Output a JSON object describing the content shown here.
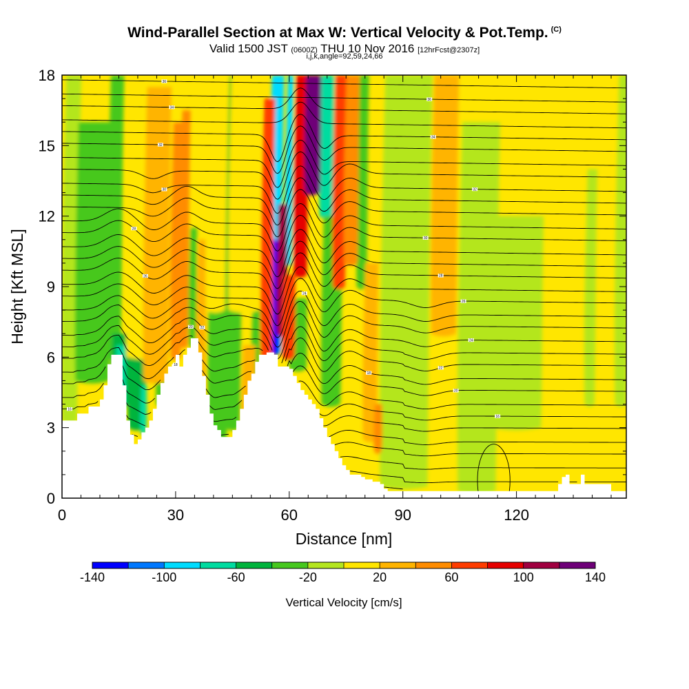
{
  "title": {
    "main": "Wind-Parallel Section at Max W: Vertical Velocity & Pot.Temp.",
    "main_units": "(C)",
    "valid_prefix": "Valid 1500 JST",
    "valid_utc": "(0600Z)",
    "valid_date": "THU 10 Nov 2016",
    "forecast": "[12hrFcst@2307z]",
    "indices": "i,j,k,angle=92,59,24,66"
  },
  "chart_data": {
    "type": "heatmap",
    "xlabel": "Distance [nm]",
    "ylabel": "Height [Kft MSL]",
    "xlim": [
      0,
      149
    ],
    "ylim": [
      0,
      18
    ],
    "x_ticks": [
      "0",
      "30",
      "60",
      "90",
      "120"
    ],
    "x_tick_values": [
      0,
      30,
      60,
      90,
      120
    ],
    "y_ticks": [
      "0",
      "3",
      "6",
      "9",
      "12",
      "15",
      "18"
    ],
    "y_tick_values": [
      0,
      3,
      6,
      9,
      12,
      15,
      18
    ],
    "colorbar": {
      "label": "Vertical Velocity [cm/s]",
      "tick_labels": [
        "-140",
        "-100",
        "-60",
        "-20",
        "20",
        "60",
        "100",
        "140"
      ],
      "tick_values": [
        -140,
        -100,
        -60,
        -20,
        20,
        60,
        100,
        140
      ],
      "bounds": [
        -140,
        -120,
        -100,
        -80,
        -60,
        -40,
        -20,
        0,
        20,
        40,
        60,
        80,
        100,
        120,
        140
      ],
      "colors": [
        "#0000ff",
        "#0078ff",
        "#00dcff",
        "#00dca0",
        "#00b43c",
        "#46c81e",
        "#b4e61e",
        "#ffe600",
        "#ffb400",
        "#ff8c00",
        "#ff3c00",
        "#e60000",
        "#a00040",
        "#6e0078"
      ]
    },
    "terrain": [
      [
        0,
        3.3
      ],
      [
        3,
        3.3
      ],
      [
        4,
        3.6
      ],
      [
        6,
        3.6
      ],
      [
        7,
        3.9
      ],
      [
        9,
        3.9
      ],
      [
        10,
        4.2
      ],
      [
        11,
        4.8
      ],
      [
        12,
        5.7
      ],
      [
        13,
        6.1
      ],
      [
        15,
        6.1
      ],
      [
        16,
        4.8
      ],
      [
        17,
        3.3
      ],
      [
        18,
        2.7
      ],
      [
        19,
        2.3
      ],
      [
        20,
        2.5
      ],
      [
        21,
        2.8
      ],
      [
        22,
        3.0
      ],
      [
        23,
        3.3
      ],
      [
        24,
        3.8
      ],
      [
        25,
        4.4
      ],
      [
        26,
        4.9
      ],
      [
        27,
        5.3
      ],
      [
        28,
        5.6
      ],
      [
        29,
        5.7
      ],
      [
        30,
        6.1
      ],
      [
        31,
        5.6
      ],
      [
        32,
        6.1
      ],
      [
        33,
        6.4
      ],
      [
        34,
        6.8
      ],
      [
        35,
        6.8
      ],
      [
        36,
        6.2
      ],
      [
        37,
        5.2
      ],
      [
        38,
        4.4
      ],
      [
        39,
        3.6
      ],
      [
        40,
        3.1
      ],
      [
        41,
        2.9
      ],
      [
        42,
        2.6
      ],
      [
        44,
        2.6
      ],
      [
        45,
        2.9
      ],
      [
        46,
        3.3
      ],
      [
        47,
        3.8
      ],
      [
        48,
        4.4
      ],
      [
        49,
        5.0
      ],
      [
        50,
        5.3
      ],
      [
        51,
        5.8
      ],
      [
        52,
        6.1
      ],
      [
        54,
        6.2
      ],
      [
        56,
        6.1
      ],
      [
        57,
        5.6
      ],
      [
        60,
        5.5
      ],
      [
        61,
        5.2
      ],
      [
        62,
        4.9
      ],
      [
        63,
        4.6
      ],
      [
        64,
        4.4
      ],
      [
        65,
        4.2
      ],
      [
        66,
        4.0
      ],
      [
        67,
        3.8
      ],
      [
        68,
        3.4
      ],
      [
        69,
        3.0
      ],
      [
        70,
        2.6
      ],
      [
        71,
        2.3
      ],
      [
        72,
        2.0
      ],
      [
        73,
        1.7
      ],
      [
        74,
        1.4
      ],
      [
        75,
        1.2
      ],
      [
        76,
        1.0
      ],
      [
        78,
        1.0
      ],
      [
        79,
        0.9
      ],
      [
        80,
        0.8
      ],
      [
        82,
        0.7
      ],
      [
        84,
        0.6
      ],
      [
        85,
        0.4
      ],
      [
        86,
        0.3
      ],
      [
        130,
        0.3
      ],
      [
        131,
        0.6
      ],
      [
        132,
        0.9
      ],
      [
        133,
        1.0
      ],
      [
        134,
        0.6
      ],
      [
        136,
        0.6
      ],
      [
        137,
        1.0
      ],
      [
        138,
        0.6
      ],
      [
        144,
        0.6
      ],
      [
        145,
        0.3
      ],
      [
        149,
        0.3
      ]
    ],
    "updraft_bands": [
      {
        "x0": 17,
        "x1": 30,
        "ybot": 6.0,
        "ytop": 18,
        "value": 8
      },
      {
        "x0": 21.5,
        "x1": 28,
        "ybot": 5.0,
        "ytop": 17.5,
        "value": 25
      },
      {
        "x0": 28.6,
        "x1": 31.3,
        "ybot": 6.0,
        "ytop": 16.0,
        "value": 40
      },
      {
        "x0": 31.0,
        "x1": 33.2,
        "ybot": 6.5,
        "ytop": 16.5,
        "value": 50
      },
      {
        "x0": 35.5,
        "x1": 37.7,
        "ybot": 4.0,
        "ytop": 11.0,
        "value": 35
      },
      {
        "x0": 38,
        "x1": 43,
        "ybot": 8.0,
        "ytop": 18,
        "value": 10
      },
      {
        "x0": 44,
        "x1": 52,
        "ybot": 8.0,
        "ytop": 18,
        "value": 5
      },
      {
        "x0": 47.5,
        "x1": 50.8,
        "ybot": 2.0,
        "ytop": 6.5,
        "value": 28
      },
      {
        "x0": 52.5,
        "x1": 55.5,
        "ybot": 6.0,
        "ytop": 17.0,
        "value": 70
      },
      {
        "x0": 56.7,
        "x1": 59.1,
        "ybot": 7.0,
        "ytop": 12.5,
        "value": 105
      },
      {
        "x0": 58.2,
        "x1": 61.4,
        "ybot": 6.0,
        "ytop": 9.5,
        "value": 60
      },
      {
        "x0": 61.2,
        "x1": 64.6,
        "ybot": 9.5,
        "ytop": 18,
        "value": 90
      },
      {
        "x0": 64.1,
        "x1": 68.1,
        "ybot": 13.0,
        "ytop": 18,
        "value": 125
      },
      {
        "x0": 71.5,
        "x1": 74.7,
        "ybot": 9.0,
        "ytop": 18,
        "value": 70
      },
      {
        "x0": 74.5,
        "x1": 78.0,
        "ybot": 10.0,
        "ytop": 18,
        "value": 45
      },
      {
        "x0": 79.5,
        "x1": 83.0,
        "ybot": 2.5,
        "ytop": 10.0,
        "value": 24
      },
      {
        "x0": 82.4,
        "x1": 84.4,
        "ybot": 2.0,
        "ytop": 4.0,
        "value": 45
      },
      {
        "x0": 97.5,
        "x1": 104,
        "ybot": 7.0,
        "ytop": 18,
        "value": 22
      }
    ],
    "downdraft_bands": [
      {
        "x0": 0,
        "x1": 4,
        "ybot": 3.3,
        "ytop": 18,
        "value": -10
      },
      {
        "x0": 3.5,
        "x1": 12.5,
        "ybot": 5.0,
        "ytop": 16.0,
        "value": -28
      },
      {
        "x0": 12.0,
        "x1": 15.5,
        "ybot": 6.0,
        "ytop": 18,
        "value": -24
      },
      {
        "x0": 13.0,
        "x1": 17.5,
        "ybot": 4.0,
        "ytop": 7.0,
        "value": -48
      },
      {
        "x0": 14.2,
        "x1": 16.6,
        "ybot": 3.8,
        "ytop": 6.5,
        "value": -62
      },
      {
        "x0": 17.5,
        "x1": 22.0,
        "ybot": 3.0,
        "ytop": 6.5,
        "value": -50
      },
      {
        "x0": 20.8,
        "x1": 22.2,
        "ybot": 2.8,
        "ytop": 4.8,
        "value": -62
      },
      {
        "x0": 24.8,
        "x1": 28.0,
        "ybot": 4.0,
        "ytop": 18,
        "value": -28
      },
      {
        "x0": 33.5,
        "x1": 35.3,
        "ybot": 6.5,
        "ytop": 11.5,
        "value": -38
      },
      {
        "x0": 38.5,
        "x1": 43.5,
        "ybot": 2.5,
        "ytop": 11.0,
        "value": -25
      },
      {
        "x0": 43.0,
        "x1": 47.0,
        "ybot": 3.0,
        "ytop": 18,
        "value": -22
      },
      {
        "x0": 46.8,
        "x1": 49.4,
        "ybot": 11.0,
        "ytop": 18,
        "value": -36
      },
      {
        "x0": 50.0,
        "x1": 52.0,
        "ybot": 4.0,
        "ytop": 8.0,
        "value": -24
      },
      {
        "x0": 54.5,
        "x1": 57.8,
        "ybot": 6.2,
        "ytop": 18,
        "value": -88
      },
      {
        "x0": 55.2,
        "x1": 57.4,
        "ybot": 6.2,
        "ytop": 11.0,
        "value": -128
      },
      {
        "x0": 59.0,
        "x1": 60.6,
        "ybot": 10.0,
        "ytop": 18,
        "value": -86
      },
      {
        "x0": 60.0,
        "x1": 64.5,
        "ybot": 5.5,
        "ytop": 8.5,
        "value": -30
      },
      {
        "x0": 68.0,
        "x1": 71.5,
        "ybot": 12.0,
        "ytop": 18,
        "value": -72
      },
      {
        "x0": 68.5,
        "x1": 73.5,
        "ybot": 4.0,
        "ytop": 12.0,
        "value": -24
      },
      {
        "x0": 77.8,
        "x1": 80.4,
        "ybot": 9.0,
        "ytop": 18,
        "value": -38
      },
      {
        "x0": 84.0,
        "x1": 96.5,
        "ybot": 0.5,
        "ytop": 18,
        "value": -20
      },
      {
        "x0": 104.5,
        "x1": 114.5,
        "ybot": 0.3,
        "ytop": 16.0,
        "value": -18
      },
      {
        "x0": 113.0,
        "x1": 126.5,
        "ybot": 3.0,
        "ytop": 12.0,
        "value": -4
      },
      {
        "x0": 138.0,
        "x1": 140.6,
        "ybot": 4.0,
        "ytop": 14.0,
        "value": -16
      },
      {
        "x0": 146.0,
        "x1": 149.0,
        "ybot": 4.0,
        "ytop": 18,
        "value": -12
      }
    ],
    "theta_contours": {
      "levels_kft": [
        0.4,
        0.9,
        1.5,
        2.1,
        2.6,
        3.2,
        3.7,
        4.2,
        4.8,
        5.3,
        5.9,
        6.4,
        6.9,
        7.5,
        8.0,
        8.6,
        9.1,
        9.7,
        10.2,
        10.7,
        11.3,
        11.8,
        12.4,
        12.9,
        13.4,
        14.0,
        14.5,
        15.1,
        15.6,
        16.1,
        16.7,
        17.2,
        17.8
      ],
      "labels": [
        {
          "level": 6,
          "x": 2,
          "text": "16"
        },
        {
          "level": 8,
          "x": 30,
          "text": "18"
        },
        {
          "level": 11,
          "x": 34,
          "text": "20"
        },
        {
          "level": 12,
          "x": 37,
          "text": "22"
        },
        {
          "level": 14,
          "x": 64,
          "text": "24"
        },
        {
          "level": 17,
          "x": 22,
          "text": "26"
        },
        {
          "level": 20,
          "x": 19,
          "text": "28"
        },
        {
          "level": 24,
          "x": 27,
          "text": "30"
        },
        {
          "level": 27,
          "x": 26,
          "text": "32"
        },
        {
          "level": 30,
          "x": 29,
          "text": "34"
        },
        {
          "level": 32,
          "x": 27,
          "text": "36"
        },
        {
          "level": 20,
          "x": 96,
          "text": "30"
        },
        {
          "level": 17,
          "x": 100,
          "text": "28"
        },
        {
          "level": 15,
          "x": 106,
          "text": "26"
        },
        {
          "level": 12,
          "x": 108,
          "text": "24"
        },
        {
          "level": 10,
          "x": 100,
          "text": "22"
        },
        {
          "level": 8,
          "x": 104,
          "text": "20"
        },
        {
          "level": 24,
          "x": 109,
          "text": "32"
        },
        {
          "level": 28,
          "x": 98,
          "text": "34"
        },
        {
          "level": 31,
          "x": 97,
          "text": "36"
        },
        {
          "level": 6,
          "x": 115,
          "text": "16"
        },
        {
          "level": 9,
          "x": 81,
          "text": "18"
        }
      ],
      "closed_low": {
        "cx": 114,
        "cy": 0.75,
        "rx": 4.3,
        "ry": 1.55
      }
    }
  }
}
